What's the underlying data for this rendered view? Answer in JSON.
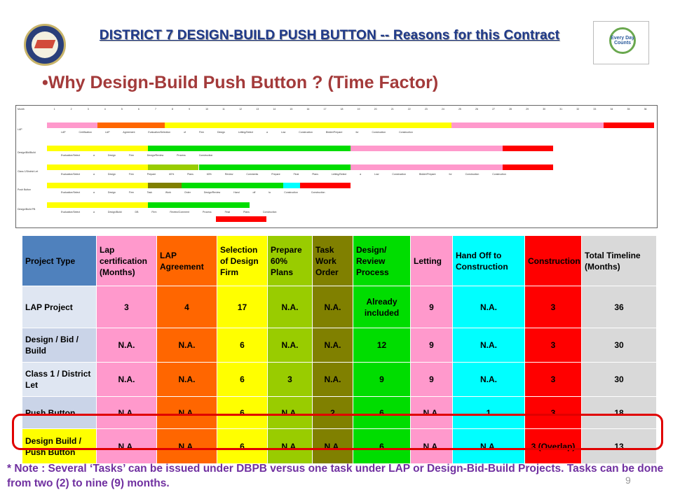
{
  "header": {
    "title": "DISTRICT 7 DESIGN-BUILD PUSH BUTTON  -- Reasons for this Contract",
    "subtitle": "•Why Design-Build Push Button ? (Time Factor)",
    "seal_text": "FLORIDA DEPARTMENT OF TRANSPORTATION",
    "logo_text": "Every Day Counts"
  },
  "gantt": {
    "months_label": "Month",
    "month_numbers": [
      "1",
      "2",
      "3",
      "4",
      "5",
      "6",
      "7",
      "8",
      "9",
      "10",
      "11",
      "12",
      "13",
      "14",
      "15",
      "16",
      "17",
      "18",
      "19",
      "20",
      "21",
      "22",
      "23",
      "24",
      "25",
      "26",
      "27",
      "28",
      "29",
      "30",
      "31",
      "32",
      "33",
      "34",
      "35",
      "36"
    ],
    "rows": [
      {
        "label": "LAP",
        "note": "LAP Certification  LAP Agreement  Evaluation/Selection of Firm Design  Letting/Select a Low Construction Bidder/Prepare for Construction  Construction",
        "bars": [
          {
            "start": 0,
            "end": 3,
            "color": "#ff99cc"
          },
          {
            "start": 3,
            "end": 7,
            "color": "#ff6600"
          },
          {
            "start": 7,
            "end": 24,
            "color": "#ffff00"
          },
          {
            "start": 24,
            "end": 33,
            "color": "#ff99cc"
          },
          {
            "start": 33,
            "end": 36,
            "color": "#ff0000"
          }
        ]
      },
      {
        "label": "Design/Bid/Build",
        "note": "Evaluation/Select a Design Firm  Design/Review Process  Construction",
        "bars": [
          {
            "start": 0,
            "end": 6,
            "color": "#ffff00"
          },
          {
            "start": 6,
            "end": 18,
            "color": "#00dd00"
          },
          {
            "start": 18,
            "end": 27,
            "color": "#ff99cc"
          },
          {
            "start": 27,
            "end": 30,
            "color": "#ff0000"
          }
        ]
      },
      {
        "label": "Class 1/District Let",
        "note": "Evaluation/Select a Design Firm  Prepare 60% Plans  60% Review Comments  Prepare Final Plans  Letting/Select a Low Construction Bidder/Prepare for Construction  Construction",
        "bars": [
          {
            "start": 0,
            "end": 6,
            "color": "#ffff00"
          },
          {
            "start": 6,
            "end": 9,
            "color": "#99cc00"
          },
          {
            "start": 9,
            "end": 18,
            "color": "#00dd00"
          },
          {
            "start": 18,
            "end": 27,
            "color": "#ff99cc"
          },
          {
            "start": 27,
            "end": 30,
            "color": "#ff0000"
          }
        ]
      },
      {
        "label": "Push Button",
        "note": "Evaluation/Select a Design Firm  Task Work Order  Design/Review  Hand off to Construction  Construction",
        "bars": [
          {
            "start": 0,
            "end": 6,
            "color": "#ffff00"
          },
          {
            "start": 6,
            "end": 8,
            "color": "#808000"
          },
          {
            "start": 8,
            "end": 14,
            "color": "#00dd00"
          },
          {
            "start": 14,
            "end": 15,
            "color": "#00ffff"
          },
          {
            "start": 15,
            "end": 18,
            "color": "#ff0000"
          }
        ]
      },
      {
        "label": "Design/Build PB",
        "note": "Evaluation/Select a Design/Build DB Firm  Review/Comment Process  Final Plans  Construction",
        "bars": [
          {
            "start": 0,
            "end": 6,
            "color": "#ffff00"
          },
          {
            "start": 6,
            "end": 12,
            "color": "#00dd00"
          },
          {
            "start": 10,
            "end": 13,
            "color": "#ff0000",
            "lane": 1
          }
        ]
      }
    ]
  },
  "table": {
    "headers": [
      "Project Type",
      "Lap certification (Months)",
      "LAP Agreement",
      "Selection of Design Firm",
      "Prepare 60% Plans",
      "Task Work Order",
      "Design/ Review Process",
      "Letting",
      "Hand Off to Construction",
      "Construction",
      "Total Timeline (Months)"
    ],
    "colors": [
      "#4f81bd",
      "#ff99cc",
      "#ff6600",
      "#ffff00",
      "#99cc00",
      "#808000",
      "#00dd00",
      "#ff99cc",
      "#00ffff",
      "#ff0000",
      "#d9d9d9"
    ],
    "rows": [
      [
        "LAP Project",
        "3",
        "4",
        "17",
        "N.A.",
        "N.A.",
        "Already included",
        "9",
        "N.A.",
        "3",
        "36"
      ],
      [
        "Design / Bid / Build",
        "N.A.",
        "N.A.",
        "6",
        "N.A.",
        "N.A.",
        "12",
        "9",
        "N.A.",
        "3",
        "30"
      ],
      [
        "Class 1 / District Let",
        "N.A.",
        "N.A.",
        "6",
        "3",
        "N.A.",
        "9",
        "9",
        "N.A.",
        "3",
        "30"
      ],
      [
        "Push Button",
        "N.A.",
        "N.A.",
        "6",
        "N.A.",
        "2",
        "6",
        "N.A.",
        "1",
        "3",
        "18"
      ],
      [
        "Design Build / Push Button",
        "N.A.",
        "N.A.",
        "6",
        "N.A.",
        "N.A.",
        "6",
        "N.A.",
        "N.A.",
        "3 (Overlap)",
        "13"
      ]
    ]
  },
  "footer": {
    "note": "* Note : Several ‘Tasks’ can be issued under DBPB versus one task under LAP or Design-Bid-Build Projects. Tasks can be done from two (2) to nine (9) months.",
    "page_number": "9"
  }
}
